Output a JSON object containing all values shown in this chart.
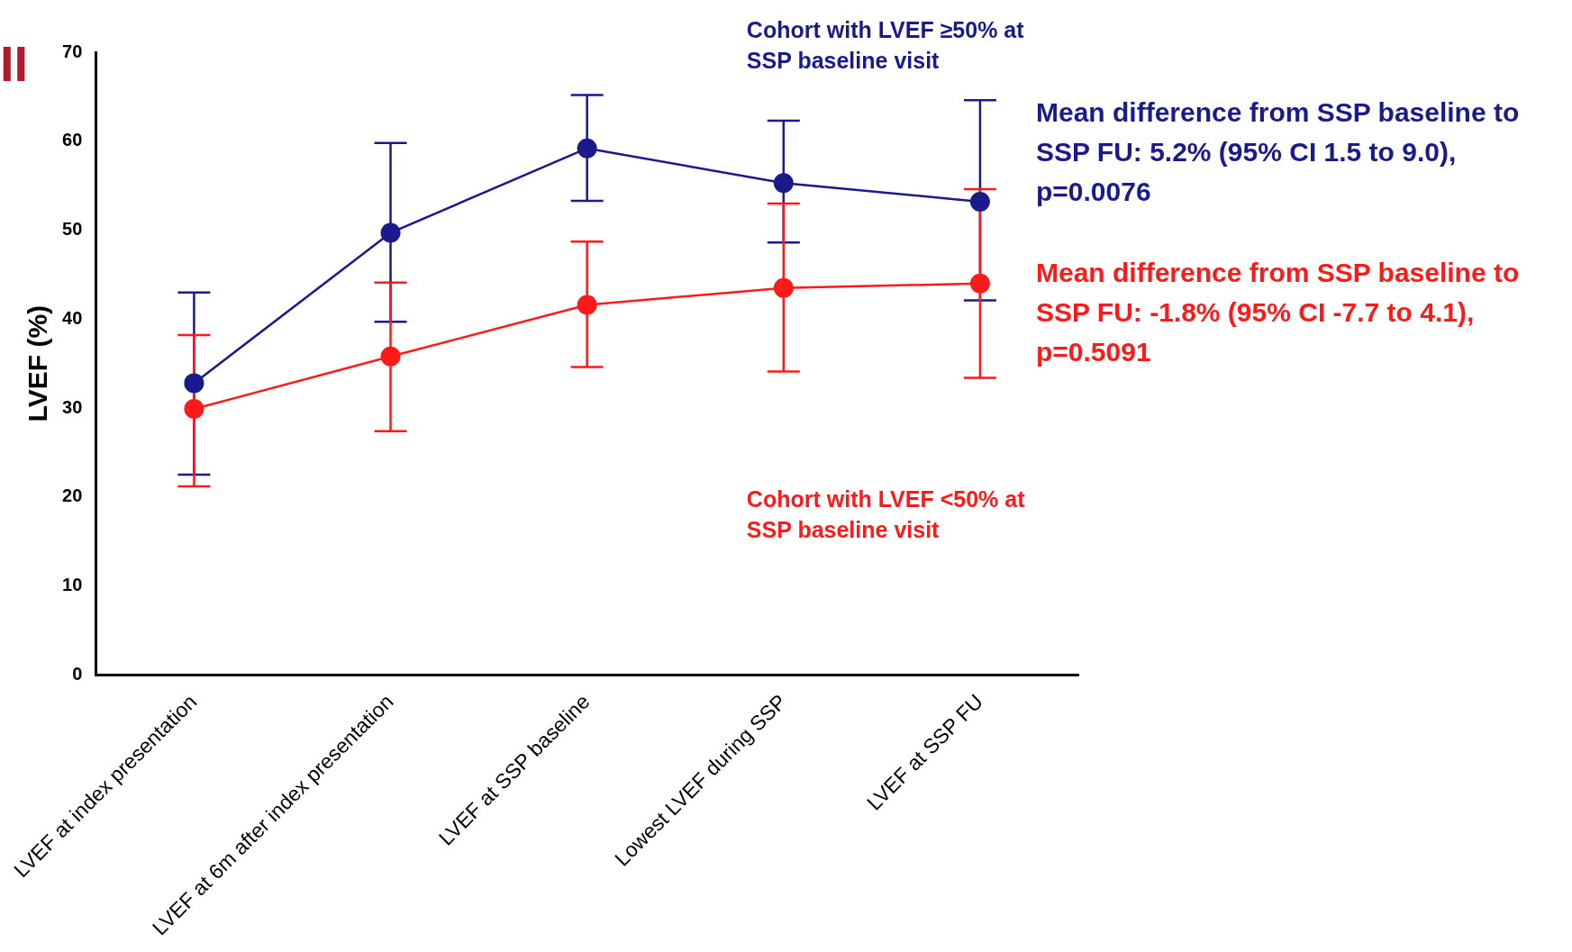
{
  "chart_data": {
    "type": "line",
    "ylabel": "LVEF (%)",
    "categories": [
      "LVEF at index presentation",
      "LVEF at 6m after index presentation",
      "LVEF at SSP baseline",
      "Lowest LVEF during SSP",
      "LVEF at SSP FU"
    ],
    "series": [
      {
        "name": "Cohort with LVEF ≥50% at SSP baseline visit",
        "color": "#1a1a8c",
        "values": [
          32.8,
          49.7,
          59.2,
          55.3,
          53.2
        ],
        "errors": [
          [
            22.5,
            43.0
          ],
          [
            39.7,
            59.8
          ],
          [
            53.3,
            65.2
          ],
          [
            48.6,
            62.3
          ],
          [
            42.1,
            64.6
          ]
        ]
      },
      {
        "name": "Cohort with LVEF <50% at SSP baseline visit",
        "color": "#ff1a1a",
        "values": [
          29.9,
          35.8,
          41.6,
          43.5,
          44.0
        ],
        "errors": [
          [
            21.2,
            38.2
          ],
          [
            27.4,
            44.1
          ],
          [
            34.6,
            48.7
          ],
          [
            34.1,
            53.0
          ],
          [
            33.4,
            54.6
          ]
        ]
      }
    ],
    "ylim": [
      0,
      70
    ],
    "yticks": [
      0,
      10,
      20,
      30,
      40,
      50,
      60,
      70
    ],
    "grid": false,
    "legend": false,
    "marker": "circle",
    "line_style": "solid",
    "annotations": [
      "II",
      "Mean difference from SSP baseline to SSP FU: 5.2% (95% CI 1.5 to 9.0), p=0.0076",
      "Mean difference from SSP baseline to SSP FU: -1.8% (95% CI -7.7 to 4.1), p=0.5091"
    ]
  }
}
